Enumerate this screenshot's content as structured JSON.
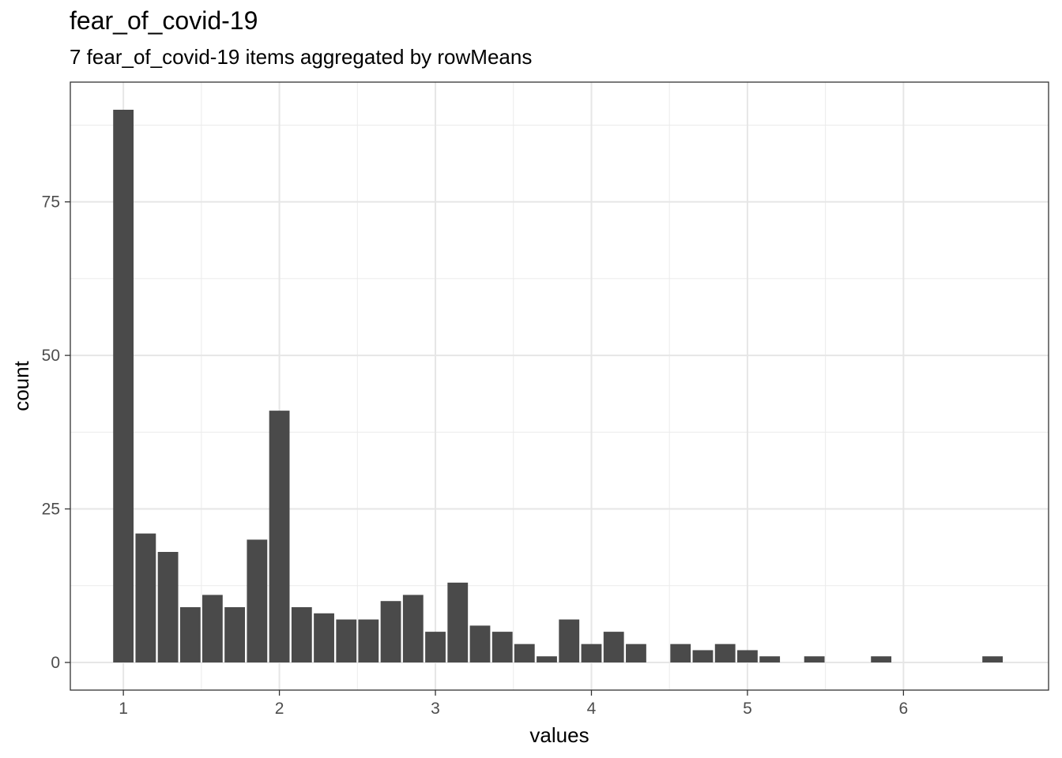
{
  "chart_data": {
    "type": "bar",
    "title": "fear_of_covid-19",
    "subtitle": "7 fear_of_covid-19 items aggregated by rowMeans",
    "xlabel": "values",
    "ylabel": "count",
    "xlim": [
      0.66,
      6.93
    ],
    "ylim": [
      -4.5,
      94.5
    ],
    "x_ticks": [
      1,
      2,
      3,
      4,
      5,
      6
    ],
    "y_ticks": [
      0,
      25,
      50,
      75
    ],
    "x_tick_labels": [
      "1",
      "2",
      "3",
      "4",
      "5",
      "6"
    ],
    "y_tick_labels": [
      "0",
      "25",
      "50",
      "75"
    ],
    "grid": true,
    "bar_color": "#4a4a4a",
    "bin_width": 0.1429,
    "x": [
      1.0,
      1.143,
      1.286,
      1.429,
      1.571,
      1.714,
      1.857,
      2.0,
      2.143,
      2.286,
      2.429,
      2.571,
      2.714,
      2.857,
      3.0,
      3.143,
      3.286,
      3.429,
      3.571,
      3.714,
      3.857,
      4.0,
      4.143,
      4.286,
      4.571,
      4.714,
      4.857,
      5.0,
      5.143,
      5.429,
      5.857,
      6.571
    ],
    "values": [
      90,
      21,
      18,
      9,
      11,
      9,
      20,
      41,
      9,
      8,
      7,
      7,
      10,
      11,
      5,
      13,
      6,
      5,
      3,
      1,
      7,
      3,
      5,
      3,
      3,
      2,
      3,
      2,
      1,
      1,
      1,
      1
    ]
  }
}
